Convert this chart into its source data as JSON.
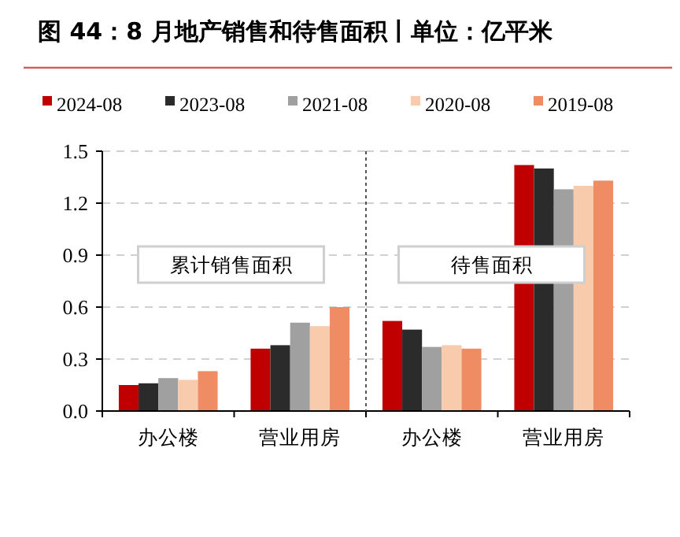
{
  "chart_data": [
    {
      "type": "bar",
      "title": "图 44：8 月地产销售和待售面积丨单位：亿平米",
      "categories": [
        "办公楼",
        "营业用房"
      ],
      "ylim": [
        0,
        1.5
      ],
      "yticks": [
        {
          "value": 0,
          "label": "0.0"
        },
        {
          "value": 0.3,
          "label": "0.3"
        },
        {
          "value": 0.6,
          "label": "0.6"
        },
        {
          "value": 0.9,
          "label": "0.9"
        },
        {
          "value": 1.2,
          "label": "1.2"
        },
        {
          "value": 1.5,
          "label": "1.5"
        }
      ],
      "grid": "y",
      "legend": "top",
      "annotations": [
        "累计销售面积"
      ],
      "series": [
        {
          "name": "2024-08",
          "color": "#c00000",
          "values": [
            0.15,
            0.36
          ]
        },
        {
          "name": "2023-08",
          "color": "#2b2b2b",
          "values": [
            0.16,
            0.38
          ]
        },
        {
          "name": "2021-08",
          "color": "#a0a0a0",
          "values": [
            0.19,
            0.51
          ]
        },
        {
          "name": "2020-08",
          "color": "#f8cbad",
          "values": [
            0.18,
            0.49
          ]
        },
        {
          "name": "2019-08",
          "color": "#f08c64",
          "values": [
            0.23,
            0.6
          ]
        }
      ]
    },
    {
      "type": "bar",
      "categories": [
        "办公楼",
        "营业用房"
      ],
      "ylim": [
        0,
        1.5
      ],
      "yticks": [
        0,
        0.3,
        0.6,
        0.9,
        1.2,
        1.5
      ],
      "grid": "y",
      "tick_labels": "x",
      "annotations": [
        "待售面积"
      ],
      "series": [
        {
          "color": "#c00000",
          "values": [
            0.52,
            1.42
          ]
        },
        {
          "color": "#2b2b2b",
          "values": [
            0.47,
            1.4
          ]
        },
        {
          "color": "#a0a0a0",
          "values": [
            0.37,
            1.28
          ]
        },
        {
          "color": "#f8cbad",
          "values": [
            0.38,
            1.3
          ]
        },
        {
          "color": "#f08c64",
          "values": [
            0.36,
            1.33
          ]
        }
      ]
    }
  ]
}
